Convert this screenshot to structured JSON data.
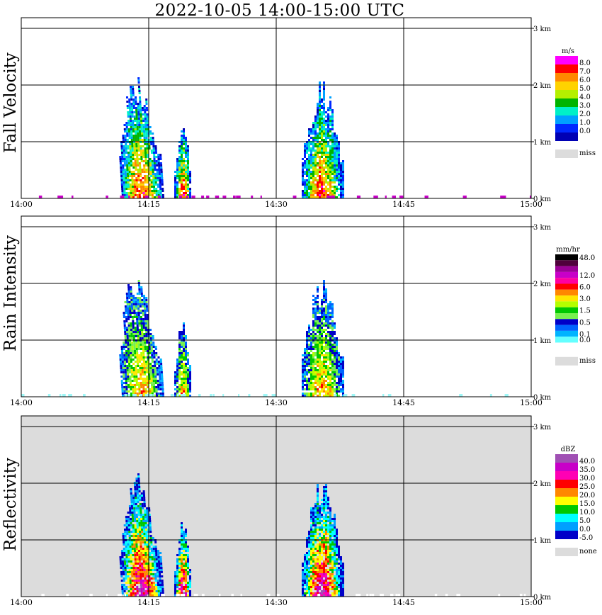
{
  "title": "2022-10-05   14:00-15:00 UTC",
  "x_ticks": [
    "14:00",
    "14:15",
    "14:30",
    "14:45",
    "15:00"
  ],
  "height_ticks": [
    "0 km",
    "1 km",
    "2 km",
    "3 km"
  ],
  "panels": [
    {
      "ylabel": "Fall Velocity",
      "unit": "m/s",
      "legend": [
        "8.0",
        "7.0",
        "6.0",
        "5.0",
        "4.0",
        "3.0",
        "2.0",
        "1.0",
        "0.0"
      ],
      "legend_colors": [
        "#ff00ff",
        "#ff0000",
        "#ff8800",
        "#ffd200",
        "#b4f000",
        "#00b400",
        "#00f0c8",
        "#00a0ff",
        "#0028ff",
        "#0000b4"
      ],
      "miss_label": "miss",
      "miss_color": "#dcdcdc",
      "background": "#ffffff"
    },
    {
      "ylabel": "Rain Intensity",
      "unit": "mm/hr",
      "legend": [
        "48.0",
        "12.0",
        "6.0",
        "3.0",
        "1.5",
        "0.5",
        "0.1",
        "0.0"
      ],
      "legend_colors": [
        "#000000",
        "#50003c",
        "#9b0096",
        "#c800c8",
        "#ff00a0",
        "#ff0000",
        "#ff8800",
        "#ffe600",
        "#b4ff00",
        "#00c800",
        "#78f050",
        "#0000c8",
        "#0064ff",
        "#00b4ff",
        "#64ffff",
        "#ffffff"
      ],
      "miss_label": "miss",
      "miss_color": "#dcdcdc",
      "background": "#ffffff"
    },
    {
      "ylabel": "Reflectivity",
      "unit": "dBZ",
      "legend": [
        "40.0",
        "35.0",
        "30.0",
        "25.0",
        "20.0",
        "15.0",
        "10.0",
        "5.0",
        "0.0",
        "-5.0"
      ],
      "legend_colors": [
        "#a050b4",
        "#c800c8",
        "#ff00b4",
        "#ff0000",
        "#ff8800",
        "#ffff00",
        "#00c800",
        "#00ffff",
        "#00a0ff",
        "#0000c8"
      ],
      "miss_label": "none",
      "miss_color": "#dcdcdc",
      "background": "#dcdcdc"
    }
  ],
  "chart_data": {
    "type": "heatmap",
    "x_range": [
      "14:00",
      "15:00"
    ],
    "y_range_km": [
      0,
      3.2
    ],
    "rain_events": [
      {
        "start": "14:11",
        "end": "14:16",
        "max_height_km": 1.95
      },
      {
        "start": "14:18",
        "end": "14:20",
        "max_height_km": 1.2
      },
      {
        "start": "14:33",
        "end": "14:38",
        "max_height_km": 1.85
      }
    ],
    "panels": [
      "Fall Velocity",
      "Rain Intensity",
      "Reflectivity"
    ]
  }
}
